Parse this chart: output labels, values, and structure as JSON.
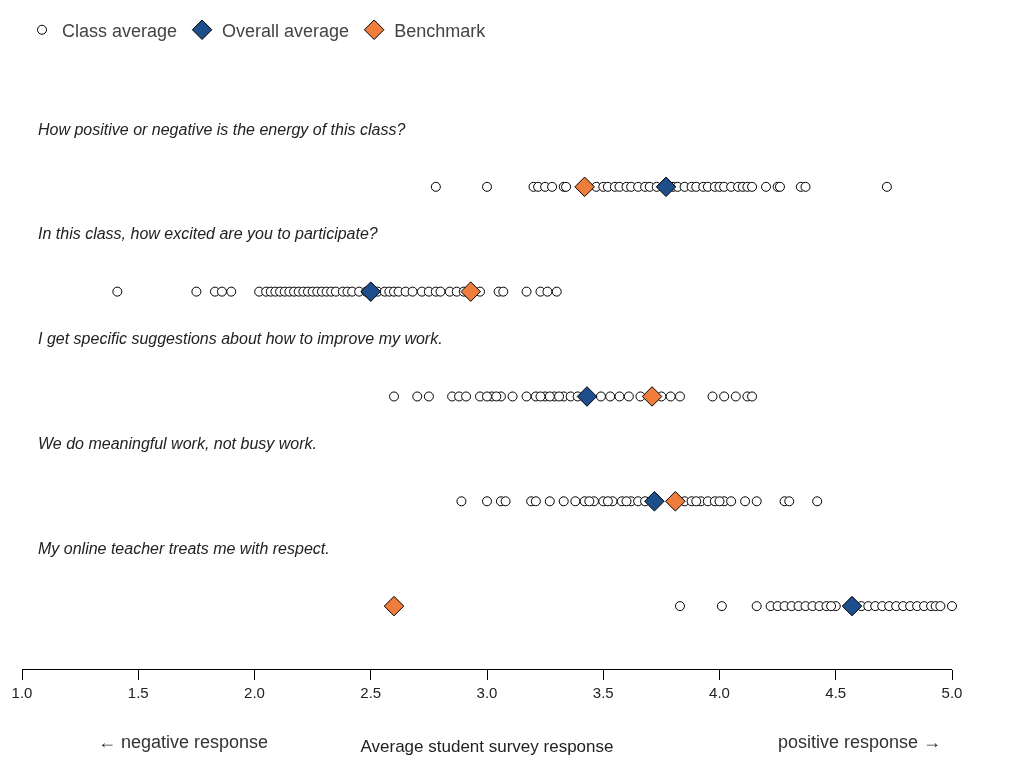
{
  "chart_data": {
    "type": "scatter",
    "orientation": "horizontal",
    "xlabel": "Average student survey response",
    "categories": [
      "How positive or negative is the energy of this class?",
      "In this class, how excited are you to participate?",
      "I get specific suggestions about how to improve my work.",
      "We do meaningful work, not busy work.",
      "My online teacher treats me with respect."
    ],
    "xlim": [
      1.0,
      5.0
    ],
    "xticks": [
      {
        "value": 1,
        "label": "1.0"
      },
      {
        "value": 1.5,
        "label": "1.5"
      },
      {
        "value": 2,
        "label": "2.0"
      },
      {
        "value": 2.5,
        "label": "2.5"
      },
      {
        "value": 3,
        "label": "3.0"
      },
      {
        "value": 3.5,
        "label": "3.5"
      },
      {
        "value": 4,
        "label": "4.0"
      },
      {
        "value": 4.5,
        "label": "4.5"
      },
      {
        "value": 5,
        "label": "5.0"
      }
    ],
    "grid": false,
    "legend": "top left",
    "tick_labels": "x",
    "annotations": [
      "← negative response",
      "positive response →"
    ],
    "series": [
      {
        "name": "Class average",
        "color": "#ffffff",
        "marker": "circle",
        "x": [
          "How positive or negative is the energy of this class?",
          "How positive or negative is the energy of this class?",
          "How positive or negative is the energy of this class?",
          "How positive or negative is the energy of this class?",
          "How positive or negative is the energy of this class?",
          "How positive or negative is the energy of this class?",
          "How positive or negative is the energy of this class?",
          "How positive or negative is the energy of this class?",
          "How positive or negative is the energy of this class?",
          "How positive or negative is the energy of this class?",
          "How positive or negative is the energy of this class?",
          "How positive or negative is the energy of this class?",
          "How positive or negative is the energy of this class?",
          "How positive or negative is the energy of this class?",
          "How positive or negative is the energy of this class?",
          "How positive or negative is the energy of this class?",
          "How positive or negative is the energy of this class?",
          "How positive or negative is the energy of this class?",
          "How positive or negative is the energy of this class?",
          "How positive or negative is the energy of this class?",
          "How positive or negative is the energy of this class?",
          "How positive or negative is the energy of this class?",
          "How positive or negative is the energy of this class?",
          "How positive or negative is the energy of this class?",
          "How positive or negative is the energy of this class?",
          "How positive or negative is the energy of this class?",
          "How positive or negative is the energy of this class?",
          "How positive or negative is the energy of this class?",
          "How positive or negative is the energy of this class?",
          "How positive or negative is the energy of this class?",
          "How positive or negative is the energy of this class?",
          "How positive or negative is the energy of this class?",
          "How positive or negative is the energy of this class?",
          "How positive or negative is the energy of this class?",
          "How positive or negative is the energy of this class?",
          "How positive or negative is the energy of this class?",
          "How positive or negative is the energy of this class?",
          "How positive or negative is the energy of this class?",
          "How positive or negative is the energy of this class?",
          "How positive or negative is the energy of this class?",
          "In this class, how excited are you to participate?",
          "In this class, how excited are you to participate?",
          "In this class, how excited are you to participate?",
          "In this class, how excited are you to participate?",
          "In this class, how excited are you to participate?",
          "In this class, how excited are you to participate?",
          "In this class, how excited are you to participate?",
          "In this class, how excited are you to participate?",
          "In this class, how excited are you to participate?",
          "In this class, how excited are you to participate?",
          "In this class, how excited are you to participate?",
          "In this class, how excited are you to participate?",
          "In this class, how excited are you to participate?",
          "In this class, how excited are you to participate?",
          "In this class, how excited are you to participate?",
          "In this class, how excited are you to participate?",
          "In this class, how excited are you to participate?",
          "In this class, how excited are you to participate?",
          "In this class, how excited are you to participate?",
          "In this class, how excited are you to participate?",
          "In this class, how excited are you to participate?",
          "In this class, how excited are you to participate?",
          "In this class, how excited are you to participate?",
          "In this class, how excited are you to participate?",
          "In this class, how excited are you to participate?",
          "In this class, how excited are you to participate?",
          "In this class, how excited are you to participate?",
          "In this class, how excited are you to participate?",
          "In this class, how excited are you to participate?",
          "In this class, how excited are you to participate?",
          "In this class, how excited are you to participate?",
          "In this class, how excited are you to participate?",
          "In this class, how excited are you to participate?",
          "In this class, how excited are you to participate?",
          "In this class, how excited are you to participate?",
          "In this class, how excited are you to participate?",
          "In this class, how excited are you to participate?",
          "In this class, how excited are you to participate?",
          "In this class, how excited are you to participate?",
          "In this class, how excited are you to participate?",
          "In this class, how excited are you to participate?",
          "In this class, how excited are you to participate?",
          "In this class, how excited are you to participate?",
          "In this class, how excited are you to participate?",
          "In this class, how excited are you to participate?",
          "In this class, how excited are you to participate?",
          "In this class, how excited are you to participate?",
          "In this class, how excited are you to participate?",
          "I get specific suggestions about how to improve my work.",
          "I get specific suggestions about how to improve my work.",
          "I get specific suggestions about how to improve my work.",
          "I get specific suggestions about how to improve my work.",
          "I get specific suggestions about how to improve my work.",
          "I get specific suggestions about how to improve my work.",
          "I get specific suggestions about how to improve my work.",
          "I get specific suggestions about how to improve my work.",
          "I get specific suggestions about how to improve my work.",
          "I get specific suggestions about how to improve my work.",
          "I get specific suggestions about how to improve my work.",
          "I get specific suggestions about how to improve my work.",
          "I get specific suggestions about how to improve my work.",
          "I get specific suggestions about how to improve my work.",
          "I get specific suggestions about how to improve my work.",
          "I get specific suggestions about how to improve my work.",
          "I get specific suggestions about how to improve my work.",
          "I get specific suggestions about how to improve my work.",
          "I get specific suggestions about how to improve my work.",
          "I get specific suggestions about how to improve my work.",
          "I get specific suggestions about how to improve my work.",
          "I get specific suggestions about how to improve my work.",
          "I get specific suggestions about how to improve my work.",
          "I get specific suggestions about how to improve my work.",
          "I get specific suggestions about how to improve my work.",
          "I get specific suggestions about how to improve my work.",
          "I get specific suggestions about how to improve my work.",
          "I get specific suggestions about how to improve my work.",
          "I get specific suggestions about how to improve my work.",
          "I get specific suggestions about how to improve my work.",
          "I get specific suggestions about how to improve my work.",
          "I get specific suggestions about how to improve my work.",
          "I get specific suggestions about how to improve my work.",
          "I get specific suggestions about how to improve my work.",
          "I get specific suggestions about how to improve my work.",
          "We do meaningful work, not busy work.",
          "We do meaningful work, not busy work.",
          "We do meaningful work, not busy work.",
          "We do meaningful work, not busy work.",
          "We do meaningful work, not busy work.",
          "We do meaningful work, not busy work.",
          "We do meaningful work, not busy work.",
          "We do meaningful work, not busy work.",
          "We do meaningful work, not busy work.",
          "We do meaningful work, not busy work.",
          "We do meaningful work, not busy work.",
          "We do meaningful work, not busy work.",
          "We do meaningful work, not busy work.",
          "We do meaningful work, not busy work.",
          "We do meaningful work, not busy work.",
          "We do meaningful work, not busy work.",
          "We do meaningful work, not busy work.",
          "We do meaningful work, not busy work.",
          "We do meaningful work, not busy work.",
          "We do meaningful work, not busy work.",
          "We do meaningful work, not busy work.",
          "We do meaningful work, not busy work.",
          "We do meaningful work, not busy work.",
          "We do meaningful work, not busy work.",
          "We do meaningful work, not busy work.",
          "We do meaningful work, not busy work.",
          "We do meaningful work, not busy work.",
          "We do meaningful work, not busy work.",
          "We do meaningful work, not busy work.",
          "We do meaningful work, not busy work.",
          "We do meaningful work, not busy work.",
          "We do meaningful work, not busy work.",
          "We do meaningful work, not busy work.",
          "We do meaningful work, not busy work.",
          "My online teacher treats me with respect.",
          "My online teacher treats me with respect.",
          "My online teacher treats me with respect.",
          "My online teacher treats me with respect.",
          "My online teacher treats me with respect.",
          "My online teacher treats me with respect.",
          "My online teacher treats me with respect.",
          "My online teacher treats me with respect.",
          "My online teacher treats me with respect.",
          "My online teacher treats me with respect.",
          "My online teacher treats me with respect.",
          "My online teacher treats me with respect.",
          "My online teacher treats me with respect.",
          "My online teacher treats me with respect.",
          "My online teacher treats me with respect.",
          "My online teacher treats me with respect.",
          "My online teacher treats me with respect.",
          "My online teacher treats me with respect.",
          "My online teacher treats me with respect.",
          "My online teacher treats me with respect.",
          "My online teacher treats me with respect.",
          "My online teacher treats me with respect.",
          "My online teacher treats me with respect.",
          "My online teacher treats me with respect.",
          "My online teacher treats me with respect.",
          "My online teacher treats me with respect.",
          "My online teacher treats me with respect.",
          "My online teacher treats me with respect."
        ],
        "values": [
          2.78,
          3.0,
          3.2,
          3.22,
          3.25,
          3.28,
          3.33,
          3.34,
          3.47,
          3.5,
          3.52,
          3.55,
          3.57,
          3.6,
          3.62,
          3.65,
          3.68,
          3.7,
          3.73,
          3.8,
          3.82,
          3.85,
          3.88,
          3.9,
          3.93,
          3.95,
          3.98,
          4.0,
          4.02,
          4.05,
          4.08,
          4.1,
          4.12,
          4.14,
          4.2,
          4.25,
          4.26,
          4.35,
          4.37,
          4.72,
          1.41,
          1.75,
          1.83,
          1.86,
          1.9,
          2.02,
          2.05,
          2.07,
          2.09,
          2.11,
          2.13,
          2.15,
          2.17,
          2.19,
          2.21,
          2.23,
          2.25,
          2.27,
          2.29,
          2.31,
          2.33,
          2.35,
          2.38,
          2.4,
          2.42,
          2.45,
          2.48,
          2.53,
          2.56,
          2.58,
          2.6,
          2.62,
          2.65,
          2.68,
          2.72,
          2.75,
          2.78,
          2.8,
          2.84,
          2.87,
          2.9,
          2.97,
          3.05,
          3.07,
          3.17,
          3.23,
          3.26,
          3.3,
          2.6,
          2.7,
          2.75,
          2.85,
          2.88,
          2.91,
          2.97,
          3.02,
          3.06,
          3.11,
          3.17,
          3.21,
          3.25,
          3.29,
          3.33,
          3.36,
          3.39,
          3.49,
          3.53,
          3.57,
          3.61,
          3.66,
          3.75,
          3.79,
          3.83,
          3.97,
          4.02,
          4.07,
          4.12,
          4.14,
          3.31,
          3.27,
          3.23,
          3.04,
          3.0,
          2.89,
          3.0,
          3.06,
          3.08,
          3.19,
          3.21,
          3.27,
          3.33,
          3.38,
          3.42,
          3.46,
          3.5,
          3.54,
          3.58,
          3.62,
          3.65,
          3.68,
          3.85,
          3.88,
          3.92,
          3.95,
          3.98,
          4.02,
          4.05,
          4.11,
          4.16,
          4.28,
          4.3,
          4.42,
          3.44,
          3.52,
          3.6,
          3.9,
          4.0,
          3.83,
          4.01,
          4.16,
          4.22,
          4.25,
          4.28,
          4.31,
          4.34,
          4.37,
          4.4,
          4.43,
          4.46,
          4.5,
          4.61,
          4.64,
          4.67,
          4.7,
          4.73,
          4.76,
          4.79,
          4.82,
          4.85,
          4.88,
          4.91,
          4.93,
          4.95,
          5.0,
          4.48
        ]
      },
      {
        "name": "Overall average",
        "color": "#1f4e8c",
        "marker": "diamond",
        "values": [
          3.77,
          2.5,
          3.43,
          3.72,
          4.57
        ]
      },
      {
        "name": "Benchmark",
        "color": "#ef7d3c",
        "marker": "diamond",
        "values": [
          3.42,
          2.93,
          3.71,
          3.81,
          2.6
        ]
      }
    ]
  }
}
